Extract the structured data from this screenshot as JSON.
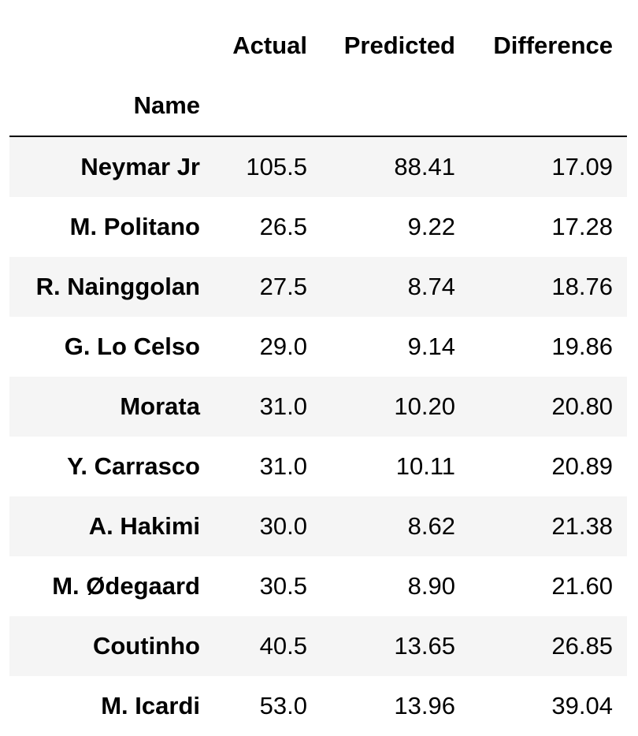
{
  "table": {
    "columns": [
      "Actual",
      "Predicted",
      "Difference"
    ],
    "index_name": "Name",
    "rows": [
      {
        "name": "Neymar Jr",
        "actual": "105.5",
        "predicted": "88.41",
        "difference": "17.09"
      },
      {
        "name": "M. Politano",
        "actual": "26.5",
        "predicted": "9.22",
        "difference": "17.28"
      },
      {
        "name": "R. Nainggolan",
        "actual": "27.5",
        "predicted": "8.74",
        "difference": "18.76"
      },
      {
        "name": "G. Lo Celso",
        "actual": "29.0",
        "predicted": "9.14",
        "difference": "19.86"
      },
      {
        "name": "Morata",
        "actual": "31.0",
        "predicted": "10.20",
        "difference": "20.80"
      },
      {
        "name": "Y. Carrasco",
        "actual": "31.0",
        "predicted": "10.11",
        "difference": "20.89"
      },
      {
        "name": "A. Hakimi",
        "actual": "30.0",
        "predicted": "8.62",
        "difference": "21.38"
      },
      {
        "name": "M. Ødegaard",
        "actual": "30.5",
        "predicted": "8.90",
        "difference": "21.60"
      },
      {
        "name": "Coutinho",
        "actual": "40.5",
        "predicted": "13.65",
        "difference": "26.85"
      },
      {
        "name": "M. Icardi",
        "actual": "53.0",
        "predicted": "13.96",
        "difference": "39.04"
      }
    ]
  }
}
